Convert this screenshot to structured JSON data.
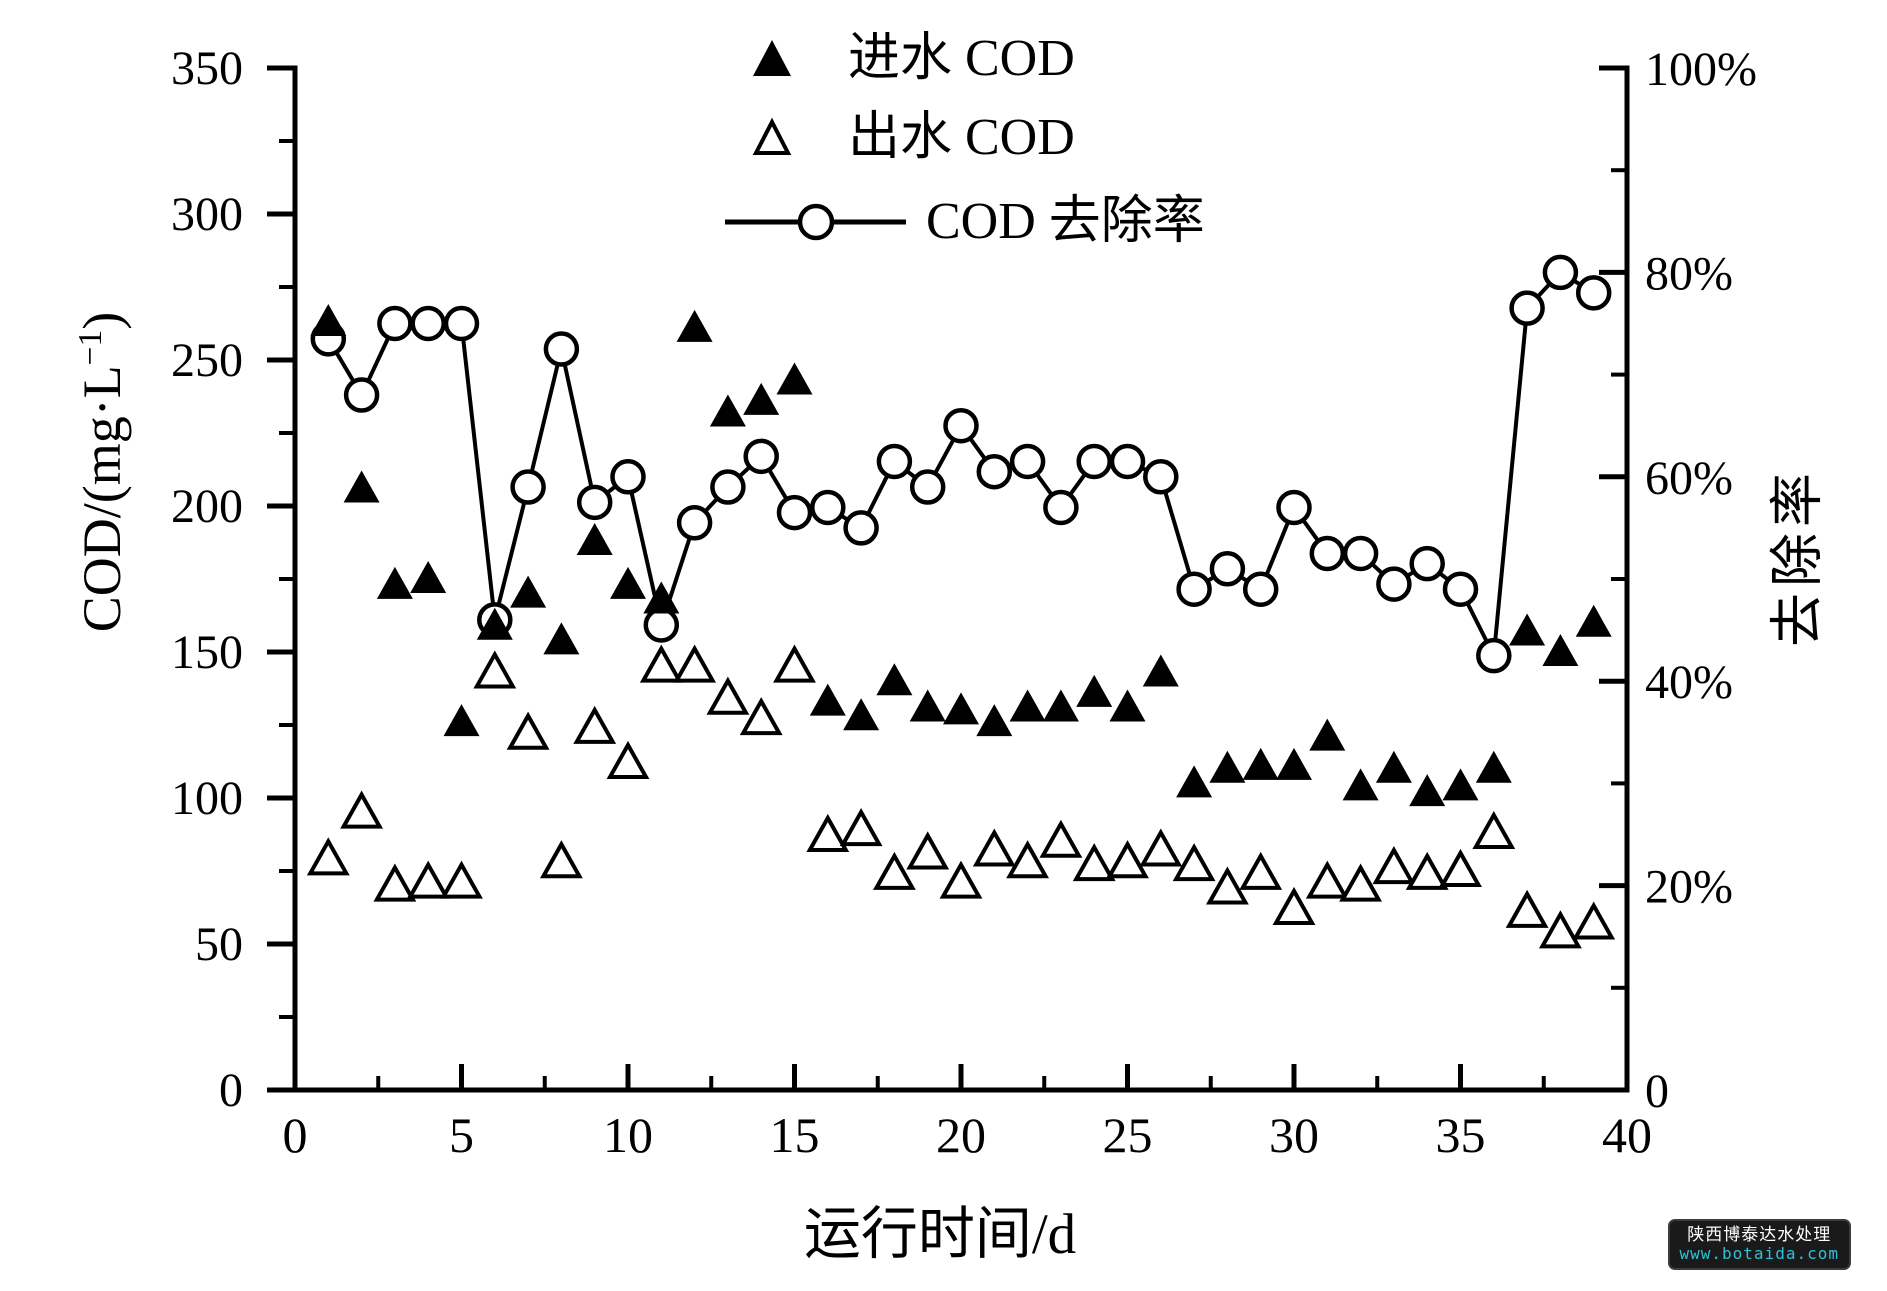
{
  "chart_data": {
    "type": "scatter",
    "x_label": "运行时间/d",
    "y_left_label": {
      "pre": "COD/(mg·L",
      "sup": "−1",
      "post": ")"
    },
    "y_right_label": "去除率",
    "x_axis": {
      "min": 0,
      "max": 40,
      "major": 5,
      "minor": 2.5,
      "labels": [
        "0",
        "5",
        "10",
        "15",
        "20",
        "25",
        "30",
        "35",
        "40"
      ]
    },
    "left_axis": {
      "min": 0,
      "max": 350,
      "major": 50,
      "minor": 25,
      "labels": [
        "0",
        "50",
        "100",
        "150",
        "200",
        "250",
        "300",
        "350"
      ]
    },
    "right_axis": {
      "min": 0,
      "max": 100,
      "major": 20,
      "minor": 10,
      "labels": [
        "0",
        "20%",
        "40%",
        "60%",
        "80%",
        "100%"
      ]
    },
    "grid": false,
    "legend_position": "top-center-inside",
    "legend": [
      {
        "label": "进水 COD",
        "marker": "filled-triangle"
      },
      {
        "label": "出水 COD",
        "marker": "open-triangle"
      },
      {
        "label": "COD 去除率",
        "marker": "line-open-circle"
      }
    ],
    "x": [
      1,
      2,
      3,
      4,
      5,
      6,
      7,
      8,
      9,
      10,
      11,
      12,
      13,
      14,
      15,
      16,
      17,
      18,
      19,
      20,
      21,
      22,
      23,
      24,
      25,
      26,
      27,
      28,
      29,
      30,
      31,
      32,
      33,
      34,
      35,
      36,
      37,
      38,
      39
    ],
    "series": [
      {
        "name": "进水 COD",
        "axis": "left",
        "marker": "filled-triangle",
        "line": false,
        "values": [
          263,
          206,
          173,
          175,
          126,
          159,
          170,
          154,
          188,
          173,
          168,
          261,
          232,
          236,
          243,
          133,
          128,
          140,
          131,
          130,
          126,
          131,
          131,
          136,
          131,
          143,
          105,
          110,
          111,
          111,
          121,
          104,
          110,
          102,
          104,
          110,
          157,
          150,
          160
        ]
      },
      {
        "name": "出水 COD",
        "axis": "left",
        "marker": "open-triangle",
        "line": false,
        "values": [
          79,
          95,
          70,
          71,
          71,
          143,
          122,
          78,
          124,
          112,
          145,
          145,
          134,
          127,
          145,
          87,
          89,
          74,
          81,
          71,
          82,
          78,
          85,
          77,
          78,
          82,
          77,
          69,
          74,
          62,
          71,
          70,
          76,
          74,
          75,
          88,
          61,
          54,
          57
        ]
      },
      {
        "name": "COD 去除率",
        "axis": "right",
        "marker": "open-circle",
        "line": true,
        "values": [
          73.5,
          68,
          75,
          75,
          75,
          46,
          59,
          72.5,
          57.5,
          60,
          45.5,
          55.5,
          59,
          62,
          56.5,
          57,
          55,
          61.5,
          59,
          65,
          60.5,
          61.5,
          57,
          61.5,
          61.5,
          60,
          49,
          51,
          49,
          57,
          52.5,
          52.5,
          49.5,
          51.5,
          49,
          42.5,
          76.5,
          80,
          78
        ]
      }
    ],
    "colors": {
      "foreground": "#000000",
      "background": "#ffffff"
    }
  },
  "watermark": {
    "line1": "陕西博泰达水处理",
    "line2": "www.botaida.com",
    "url_color": "#2fc1d8"
  }
}
